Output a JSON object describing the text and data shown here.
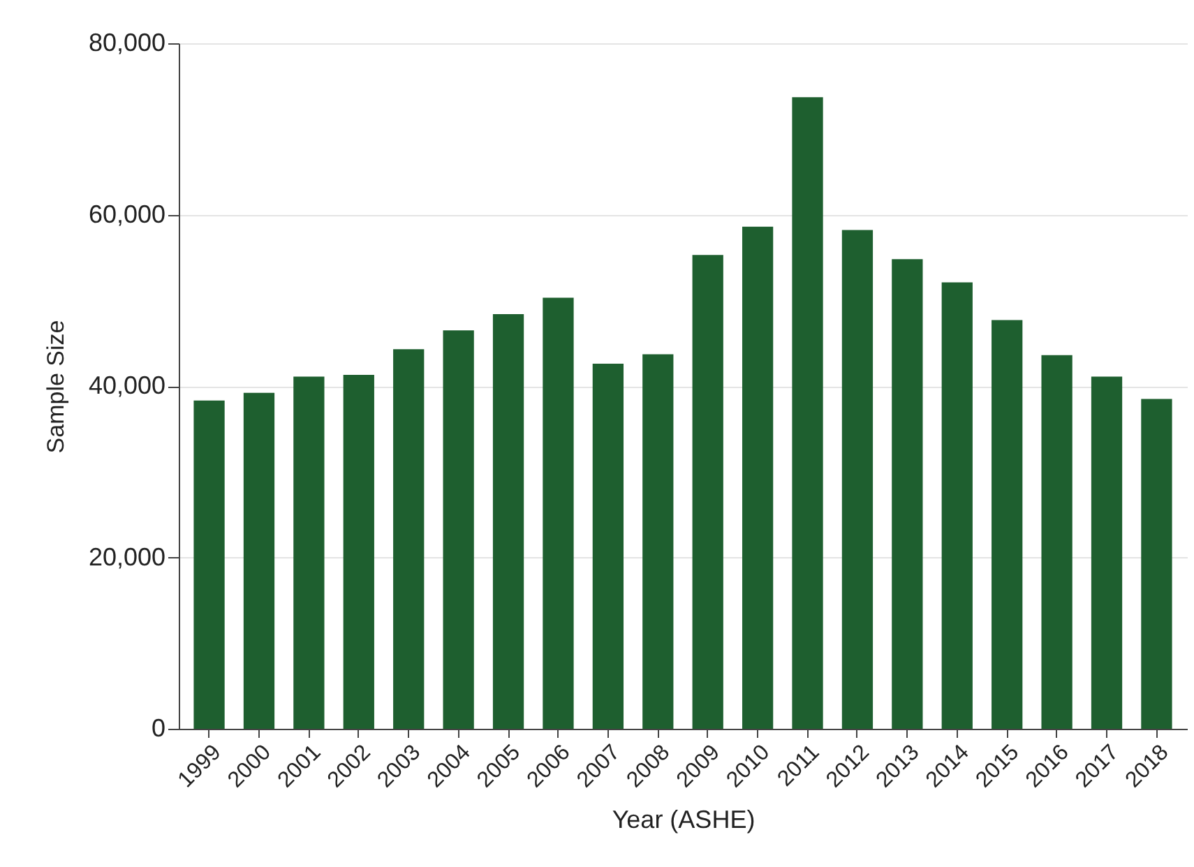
{
  "chart_data": {
    "type": "bar",
    "xlabel": "Year (ASHE)",
    "ylabel": "Sample Size",
    "categories": [
      "1999",
      "2000",
      "2001",
      "2002",
      "2003",
      "2004",
      "2005",
      "2006",
      "2007",
      "2008",
      "2009",
      "2010",
      "2011",
      "2012",
      "2013",
      "2014",
      "2015",
      "2016",
      "2017",
      "2018"
    ],
    "values": [
      38300,
      39200,
      41100,
      41300,
      44300,
      46500,
      48400,
      50300,
      42600,
      43700,
      55300,
      58600,
      73700,
      58200,
      54800,
      52100,
      47700,
      43600,
      41100,
      38500
    ],
    "color": "#1e5f2f",
    "ylim": [
      0,
      80000
    ],
    "yticks": [
      0,
      {
        "value": 20000,
        "label": "20,000"
      },
      {
        "value": 40000,
        "label": "40,000"
      },
      {
        "value": 60000,
        "label": "60,000"
      },
      {
        "value": 80000,
        "label": "80,000"
      }
    ],
    "grid": "y"
  }
}
